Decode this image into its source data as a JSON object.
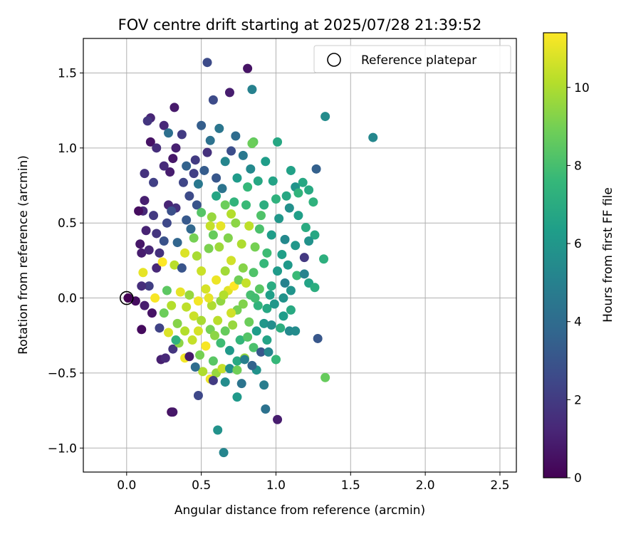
{
  "chart_data": {
    "type": "scatter",
    "title": "FOV centre drift starting at 2025/07/28 21:39:52",
    "xlabel": "Angular distance from reference (arcmin)",
    "ylabel": "Rotation from reference (arcmin)",
    "xlim": [
      -0.29,
      2.61
    ],
    "ylim": [
      -1.16,
      1.73
    ],
    "xticks": [
      0.0,
      0.5,
      1.0,
      1.5,
      2.0,
      2.5
    ],
    "xtick_labels": [
      "0.0",
      "0.5",
      "1.0",
      "1.5",
      "2.0",
      "2.5"
    ],
    "yticks": [
      -1.0,
      -0.5,
      0.0,
      0.5,
      1.0,
      1.5
    ],
    "ytick_labels": [
      "−1.0",
      "−0.5",
      "0.0",
      "0.5",
      "1.0",
      "1.5"
    ],
    "grid": true,
    "legend": {
      "placement": "top-right",
      "entries": [
        "Reference platepar"
      ]
    },
    "colorbar": {
      "label": "Hours from first FF file",
      "min": 0,
      "max": 11.4,
      "ticks": [
        0,
        2,
        4,
        6,
        8,
        10
      ],
      "tick_labels": [
        "0",
        "2",
        "4",
        "6",
        "8",
        "10"
      ],
      "colormap": "viridis",
      "colormap_stops": [
        "#440154",
        "#482878",
        "#3e4989",
        "#31688e",
        "#26828e",
        "#1f9e89",
        "#35b779",
        "#6ece58",
        "#b5de2b",
        "#fde725"
      ]
    },
    "reference_point": {
      "x": 0.0,
      "y": 0.0,
      "name": "Reference platepar"
    },
    "series": [
      {
        "points": [
          [
            0.01,
            0.0,
            0.0
          ],
          [
            0.06,
            -0.02,
            0.4
          ],
          [
            0.1,
            -0.21,
            0.3
          ],
          [
            0.3,
            -0.76,
            0.5
          ],
          [
            0.31,
            -0.76,
            0.7
          ],
          [
            0.23,
            -0.41,
            1.0
          ],
          [
            0.26,
            -0.4,
            1.3
          ],
          [
            0.54,
            1.57,
            2.6
          ],
          [
            0.81,
            1.53,
            0.6
          ],
          [
            0.69,
            1.37,
            0.9
          ],
          [
            0.58,
            1.32,
            2.6
          ],
          [
            0.84,
            1.39,
            5.0
          ],
          [
            1.33,
            1.21,
            5.5
          ],
          [
            1.65,
            1.07,
            5.3
          ],
          [
            0.32,
            1.27,
            0.8
          ],
          [
            0.16,
            1.2,
            1.2
          ],
          [
            0.14,
            1.18,
            1.8
          ],
          [
            0.25,
            1.15,
            1.3
          ],
          [
            0.28,
            1.1,
            4.2
          ],
          [
            0.37,
            1.09,
            2.0
          ],
          [
            0.5,
            1.15,
            3.4
          ],
          [
            0.62,
            1.13,
            4.5
          ],
          [
            0.73,
            1.08,
            4.0
          ],
          [
            0.85,
            1.04,
            8.6
          ],
          [
            1.01,
            1.04,
            6.8
          ],
          [
            0.16,
            1.04,
            0.6
          ],
          [
            0.2,
            1.0,
            1.5
          ],
          [
            0.33,
            1.0,
            1.0
          ],
          [
            0.54,
            0.97,
            1.6
          ],
          [
            0.7,
            0.98,
            2.7
          ],
          [
            1.27,
            0.86,
            3.5
          ],
          [
            0.12,
            0.83,
            1.7
          ],
          [
            0.29,
            0.84,
            0.9
          ],
          [
            0.45,
            0.83,
            2.2
          ],
          [
            0.78,
            0.95,
            4.6
          ],
          [
            0.93,
            0.91,
            6.3
          ],
          [
            1.1,
            0.85,
            6.5
          ],
          [
            0.18,
            0.77,
            2.2
          ],
          [
            0.28,
            0.62,
            1.2
          ],
          [
            0.42,
            0.68,
            2.6
          ],
          [
            0.6,
            0.8,
            3.1
          ],
          [
            0.83,
            0.86,
            5.4
          ],
          [
            0.98,
            0.78,
            6.6
          ],
          [
            1.13,
            0.74,
            5.9
          ],
          [
            1.18,
            0.77,
            6.8
          ],
          [
            0.11,
            0.58,
            1.3
          ],
          [
            0.08,
            0.58,
            0.4
          ],
          [
            0.12,
            0.65,
            1.0
          ],
          [
            0.33,
            0.6,
            1.6
          ],
          [
            0.47,
            0.62,
            3.0
          ],
          [
            0.64,
            0.73,
            4.4
          ],
          [
            0.81,
            0.74,
            7.6
          ],
          [
            1.07,
            0.68,
            6.8
          ],
          [
            1.25,
            0.64,
            7.3
          ],
          [
            1.22,
            0.72,
            6.9
          ],
          [
            0.09,
            0.36,
            0.7
          ],
          [
            0.13,
            0.45,
            1.1
          ],
          [
            0.2,
            0.43,
            1.8
          ],
          [
            0.27,
            0.5,
            2.5
          ],
          [
            0.4,
            0.52,
            3.2
          ],
          [
            0.5,
            0.57,
            8.3
          ],
          [
            0.57,
            0.54,
            9.6
          ],
          [
            0.66,
            0.62,
            8.8
          ],
          [
            0.72,
            0.64,
            7.4
          ],
          [
            0.92,
            0.62,
            7.1
          ],
          [
            1.02,
            0.53,
            6.0
          ],
          [
            1.15,
            0.55,
            6.4
          ],
          [
            1.2,
            0.47,
            7.0
          ],
          [
            1.26,
            0.42,
            6.8
          ],
          [
            0.1,
            0.3,
            0.9
          ],
          [
            0.15,
            0.32,
            1.2
          ],
          [
            0.25,
            0.38,
            2.9
          ],
          [
            0.34,
            0.37,
            3.7
          ],
          [
            0.45,
            0.4,
            9.0
          ],
          [
            0.56,
            0.48,
            10.4
          ],
          [
            0.63,
            0.48,
            11.0
          ],
          [
            0.73,
            0.5,
            9.4
          ],
          [
            0.82,
            0.48,
            10.3
          ],
          [
            0.89,
            0.46,
            8.1
          ],
          [
            0.97,
            0.42,
            6.3
          ],
          [
            1.06,
            0.39,
            5.4
          ],
          [
            1.13,
            0.35,
            6.0
          ],
          [
            1.19,
            0.27,
            1.9
          ],
          [
            1.32,
            0.26,
            7.2
          ],
          [
            0.11,
            0.17,
            11.0
          ],
          [
            0.15,
            0.08,
            2.1
          ],
          [
            0.2,
            0.2,
            1.3
          ],
          [
            0.24,
            0.24,
            11.4
          ],
          [
            0.32,
            0.22,
            10.2
          ],
          [
            0.39,
            0.3,
            10.8
          ],
          [
            0.47,
            0.28,
            9.9
          ],
          [
            0.55,
            0.33,
            9.1
          ],
          [
            0.62,
            0.34,
            9.7
          ],
          [
            0.7,
            0.25,
            10.6
          ],
          [
            0.78,
            0.2,
            9.3
          ],
          [
            0.85,
            0.17,
            8.2
          ],
          [
            0.92,
            0.23,
            7.6
          ],
          [
            1.01,
            0.18,
            6.2
          ],
          [
            1.06,
            0.1,
            5.0
          ],
          [
            1.14,
            0.15,
            7.7
          ],
          [
            1.19,
            0.16,
            5.1
          ],
          [
            1.22,
            0.1,
            6.6
          ],
          [
            1.26,
            0.07,
            7.1
          ],
          [
            0.1,
            0.08,
            1.5
          ],
          [
            0.12,
            -0.05,
            0.9
          ],
          [
            0.19,
            0.0,
            11.3
          ],
          [
            0.27,
            0.05,
            8.5
          ],
          [
            0.3,
            -0.05,
            10.1
          ],
          [
            0.36,
            0.04,
            11.0
          ],
          [
            0.42,
            0.02,
            9.6
          ],
          [
            0.48,
            -0.02,
            11.2
          ],
          [
            0.53,
            0.06,
            10.7
          ],
          [
            0.57,
            -0.05,
            10.0
          ],
          [
            0.63,
            -0.02,
            9.5
          ],
          [
            0.68,
            0.05,
            10.9
          ],
          [
            0.72,
            0.08,
            11.4
          ],
          [
            0.78,
            -0.04,
            9.2
          ],
          [
            0.83,
            0.02,
            8.0
          ],
          [
            0.88,
            -0.05,
            7.4
          ],
          [
            0.94,
            -0.07,
            6.8
          ],
          [
            0.99,
            -0.04,
            6.0
          ],
          [
            1.05,
            0.0,
            5.8
          ],
          [
            1.1,
            -0.08,
            6.9
          ],
          [
            0.25,
            -0.1,
            8.8
          ],
          [
            0.28,
            -0.23,
            10.8
          ],
          [
            0.34,
            -0.17,
            9.3
          ],
          [
            0.39,
            -0.22,
            10.1
          ],
          [
            0.45,
            -0.12,
            10.5
          ],
          [
            0.5,
            -0.15,
            9.9
          ],
          [
            0.56,
            -0.21,
            9.0
          ],
          [
            0.61,
            -0.15,
            10.2
          ],
          [
            0.66,
            -0.22,
            8.7
          ],
          [
            0.71,
            -0.18,
            9.6
          ],
          [
            0.76,
            -0.28,
            7.5
          ],
          [
            0.82,
            -0.16,
            8.8
          ],
          [
            0.87,
            -0.22,
            6.3
          ],
          [
            0.92,
            -0.17,
            6.0
          ],
          [
            0.97,
            -0.18,
            5.6
          ],
          [
            1.03,
            -0.2,
            7.1
          ],
          [
            1.09,
            -0.22,
            5.4
          ],
          [
            0.31,
            -0.34,
            1.8
          ],
          [
            0.35,
            -0.3,
            9.4
          ],
          [
            0.39,
            -0.4,
            11.2
          ],
          [
            0.44,
            -0.28,
            10.4
          ],
          [
            0.49,
            -0.38,
            9.0
          ],
          [
            0.53,
            -0.32,
            11.3
          ],
          [
            0.58,
            -0.42,
            8.4
          ],
          [
            0.63,
            -0.3,
            7.8
          ],
          [
            0.69,
            -0.35,
            6.1
          ],
          [
            0.74,
            -0.42,
            6.9
          ],
          [
            0.79,
            -0.4,
            9.6
          ],
          [
            0.85,
            -0.33,
            8.1
          ],
          [
            0.9,
            -0.36,
            3.1
          ],
          [
            0.95,
            -0.36,
            5.3
          ],
          [
            1.0,
            -0.41,
            7.9
          ],
          [
            0.42,
            -0.39,
            0.8
          ],
          [
            0.51,
            -0.49,
            10.0
          ],
          [
            0.56,
            -0.54,
            11.1
          ],
          [
            0.6,
            -0.5,
            9.6
          ],
          [
            0.64,
            -0.47,
            10.4
          ],
          [
            0.69,
            -0.47,
            5.6
          ],
          [
            0.74,
            -0.48,
            8.9
          ],
          [
            0.79,
            -0.41,
            4.9
          ],
          [
            0.87,
            -0.48,
            5.8
          ],
          [
            1.0,
            -0.41,
            7.6
          ],
          [
            0.48,
            -0.65,
            2.5
          ],
          [
            0.58,
            -0.55,
            2.0
          ],
          [
            0.77,
            -0.57,
            4.4
          ],
          [
            0.92,
            -0.58,
            4.8
          ],
          [
            0.74,
            -0.66,
            6.1
          ],
          [
            0.93,
            -0.74,
            4.3
          ],
          [
            1.01,
            -0.81,
            0.9
          ],
          [
            0.61,
            -0.88,
            5.8
          ],
          [
            0.65,
            -1.03,
            5.2
          ],
          [
            1.28,
            -0.27,
            3.1
          ],
          [
            1.13,
            -0.22,
            5.5
          ],
          [
            1.33,
            -0.53,
            8.7
          ],
          [
            1.22,
            0.38,
            5.8
          ],
          [
            1.15,
            0.7,
            7.4
          ],
          [
            0.84,
            1.03,
            8.8
          ],
          [
            0.46,
            0.92,
            2.0
          ],
          [
            0.31,
            0.93,
            0.7
          ],
          [
            0.25,
            0.88,
            1.4
          ],
          [
            0.38,
            0.77,
            2.4
          ],
          [
            0.52,
            0.85,
            3.3
          ],
          [
            0.66,
            0.91,
            5.2
          ],
          [
            0.74,
            0.8,
            6.2
          ],
          [
            0.88,
            0.78,
            6.8
          ],
          [
            1.0,
            0.66,
            7.3
          ],
          [
            1.09,
            0.6,
            5.7
          ],
          [
            0.18,
            0.55,
            1.9
          ],
          [
            0.3,
            0.58,
            2.8
          ],
          [
            0.43,
            0.46,
            3.8
          ],
          [
            0.58,
            0.42,
            8.7
          ],
          [
            0.68,
            0.4,
            9.2
          ],
          [
            0.77,
            0.36,
            10.0
          ],
          [
            0.86,
            0.34,
            9.0
          ],
          [
            0.94,
            0.3,
            7.8
          ],
          [
            1.04,
            0.29,
            6.4
          ],
          [
            0.22,
            0.3,
            1.6
          ],
          [
            0.37,
            0.2,
            3.0
          ],
          [
            0.5,
            0.18,
            10.5
          ],
          [
            0.6,
            0.12,
            11.1
          ],
          [
            0.66,
            0.18,
            9.8
          ],
          [
            0.75,
            0.12,
            8.9
          ],
          [
            0.8,
            0.1,
            10.4
          ],
          [
            0.89,
            0.06,
            8.4
          ],
          [
            0.97,
            0.08,
            7.0
          ],
          [
            1.08,
            0.22,
            6.1
          ],
          [
            0.17,
            -0.1,
            0.6
          ],
          [
            0.22,
            -0.2,
            2.3
          ],
          [
            0.4,
            -0.06,
            10.3
          ],
          [
            0.55,
            0.0,
            11.0
          ],
          [
            0.65,
            0.02,
            10.1
          ],
          [
            0.74,
            -0.08,
            9.0
          ],
          [
            0.86,
            0.0,
            7.9
          ],
          [
            0.96,
            0.02,
            6.4
          ],
          [
            1.1,
            0.05,
            5.9
          ],
          [
            0.33,
            -0.28,
            7.3
          ],
          [
            0.48,
            -0.22,
            10.7
          ],
          [
            0.59,
            -0.25,
            9.4
          ],
          [
            0.7,
            -0.1,
            10.6
          ],
          [
            0.81,
            -0.26,
            8.3
          ],
          [
            0.94,
            -0.28,
            6.6
          ],
          [
            1.05,
            -0.12,
            6.3
          ],
          [
            0.46,
            -0.46,
            4.0
          ],
          [
            0.66,
            -0.56,
            5.5
          ],
          [
            0.84,
            -0.45,
            3.6
          ],
          [
            0.7,
            0.56,
            10.1
          ],
          [
            0.8,
            0.62,
            7.7
          ],
          [
            0.9,
            0.55,
            8.2
          ],
          [
            0.6,
            0.68,
            6.7
          ],
          [
            0.48,
            0.76,
            4.6
          ],
          [
            0.4,
            0.88,
            3.6
          ],
          [
            0.56,
            1.05,
            4.3
          ]
        ]
      }
    ]
  }
}
